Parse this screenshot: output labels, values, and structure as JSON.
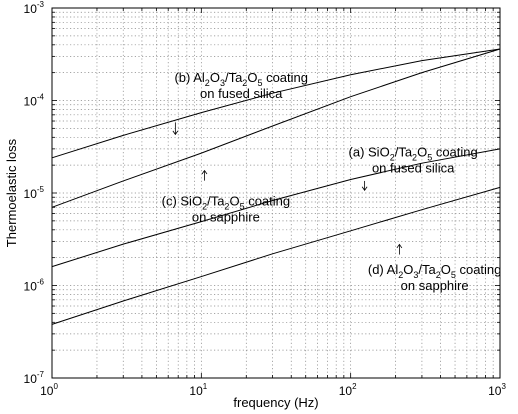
{
  "chart_data": {
    "type": "line",
    "xlabel": "frequency (Hz)",
    "ylabel": "Thermoelastic loss",
    "x_scale": "log",
    "y_scale": "log",
    "xlim": [
      1,
      1000
    ],
    "ylim": [
      1e-07,
      0.001
    ],
    "grid": true,
    "x_ticks": [
      {
        "base": "10",
        "exp": "0",
        "value": 1
      },
      {
        "base": "10",
        "exp": "1",
        "value": 10
      },
      {
        "base": "10",
        "exp": "2",
        "value": 100
      },
      {
        "base": "10",
        "exp": "3",
        "value": 1000
      }
    ],
    "y_ticks": [
      {
        "base": "10",
        "exp": "-7",
        "value": 1e-07
      },
      {
        "base": "10",
        "exp": "-6",
        "value": 1e-06
      },
      {
        "base": "10",
        "exp": "-5",
        "value": 1e-05
      },
      {
        "base": "10",
        "exp": "-4",
        "value": 0.0001
      },
      {
        "base": "10",
        "exp": "-3",
        "value": 0.001
      }
    ],
    "series": [
      {
        "id": "b",
        "x": [
          1,
          3,
          10,
          30,
          100,
          300,
          1000
        ],
        "values": [
          2.4e-05,
          4.2e-05,
          7.4e-05,
          0.00012,
          0.00019,
          0.00027,
          0.00036
        ]
      },
      {
        "id": "c",
        "x": [
          1,
          3,
          10,
          30,
          100,
          300,
          1000
        ],
        "values": [
          7e-06,
          1.35e-05,
          2.7e-05,
          5.3e-05,
          0.00011,
          0.0002,
          0.00036
        ]
      },
      {
        "id": "a",
        "x": [
          1,
          3,
          10,
          30,
          100,
          300,
          1000
        ],
        "values": [
          1.6e-06,
          2.8e-06,
          4.9e-06,
          8.3e-06,
          1.4e-05,
          2.1e-05,
          3e-05
        ]
      },
      {
        "id": "d",
        "x": [
          1,
          3,
          10,
          30,
          100,
          300,
          1000
        ],
        "values": [
          3.8e-07,
          6.8e-07,
          1.25e-06,
          2.2e-06,
          3.9e-06,
          6.6e-06,
          1.15e-05
        ]
      }
    ],
    "annotations": [
      {
        "id": "b",
        "line1": [
          {
            "t": "(b) Al"
          },
          {
            "t": "2",
            "sub": true
          },
          {
            "t": "O"
          },
          {
            "t": "3",
            "sub": true
          },
          {
            "t": "/Ta"
          },
          {
            "t": "2",
            "sub": true
          },
          {
            "t": "O"
          },
          {
            "t": "5",
            "sub": true
          },
          {
            "t": " coating"
          }
        ],
        "line2": "on fused silica",
        "text_x": 18.5,
        "text_y": 0.000158,
        "arrow_x": 6.7,
        "arrow_from": 5.8e-05,
        "arrow_to": 4.3e-05
      },
      {
        "id": "a",
        "line1": [
          {
            "t": "(a) SiO"
          },
          {
            "t": "2",
            "sub": true
          },
          {
            "t": "/Ta"
          },
          {
            "t": "2",
            "sub": true
          },
          {
            "t": "O"
          },
          {
            "t": "5",
            "sub": true
          },
          {
            "t": " coating"
          }
        ],
        "line2": "on fused silica",
        "text_x": 262,
        "text_y": 2.48e-05,
        "arrow_x": 124,
        "arrow_from": 1.35e-05,
        "arrow_to": 1.07e-05
      },
      {
        "id": "c",
        "line1": [
          {
            "t": "(c) SiO"
          },
          {
            "t": "2",
            "sub": true
          },
          {
            "t": "/Ta"
          },
          {
            "t": "2",
            "sub": true
          },
          {
            "t": "O"
          },
          {
            "t": "5",
            "sub": true
          },
          {
            "t": " coating"
          }
        ],
        "line2": "on sapphire",
        "text_x": 14.6,
        "text_y": 7.3e-06,
        "arrow_x": 10.5,
        "arrow_from": 1.36e-05,
        "arrow_to": 1.75e-05
      },
      {
        "id": "d",
        "line1": [
          {
            "t": "(d) Al"
          },
          {
            "t": "2",
            "sub": true
          },
          {
            "t": "O"
          },
          {
            "t": "3",
            "sub": true
          },
          {
            "t": "/Ta"
          },
          {
            "t": "2",
            "sub": true
          },
          {
            "t": "O"
          },
          {
            "t": "5",
            "sub": true
          },
          {
            "t": " coating"
          }
        ],
        "line2": "on sapphire",
        "text_x": 365,
        "text_y": 1.33e-06,
        "arrow_x": 212,
        "arrow_from": 2.16e-06,
        "arrow_to": 2.78e-06
      }
    ]
  }
}
